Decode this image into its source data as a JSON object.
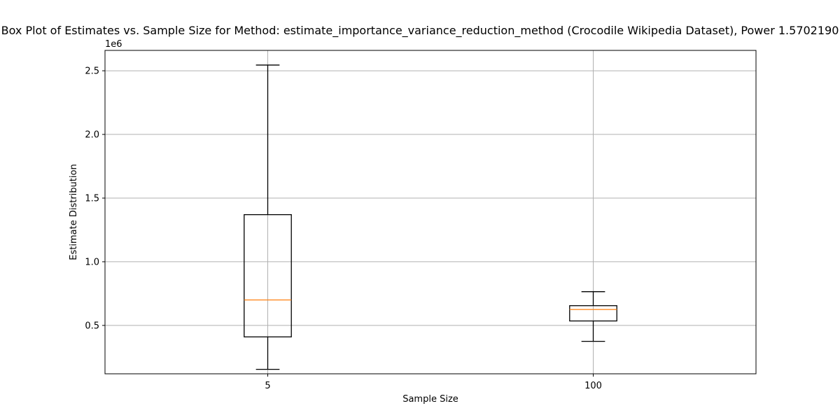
{
  "chart_data": {
    "type": "boxplot",
    "title": "Box Plot of Estimates vs. Sample Size for Method: estimate_importance_variance_reduction_method (Crocodile Wikipedia Dataset), Power 1.5702190",
    "xlabel": "Sample Size",
    "ylabel": "Estimate Distribution",
    "y_offset_label": "1e6",
    "ylim": [
      0.12,
      2.66
    ],
    "y_unit_multiplier": 1000000,
    "y_ticks": [
      0.5,
      1.0,
      1.5,
      2.0,
      2.5
    ],
    "y_tick_labels": [
      "0.5",
      "1.0",
      "1.5",
      "2.0",
      "2.5"
    ],
    "categories": [
      "5",
      "100"
    ],
    "boxes": [
      {
        "category": "5",
        "whisker_low": 0.155,
        "q1": 0.41,
        "median": 0.7,
        "q3": 1.37,
        "whisker_high": 2.545
      },
      {
        "category": "100",
        "whisker_low": 0.375,
        "q1": 0.535,
        "median": 0.625,
        "q3": 0.655,
        "whisker_high": 0.765
      }
    ],
    "grid": true,
    "colors": {
      "box": "#000000",
      "median": "#ff7f0e",
      "grid": "#b0b0b0",
      "axes": "#000000"
    }
  }
}
